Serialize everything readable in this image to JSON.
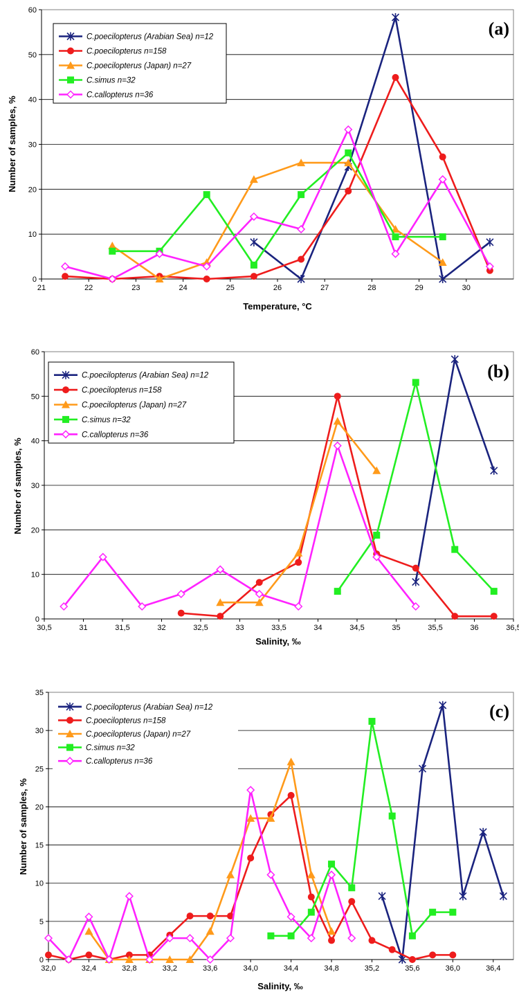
{
  "series_styles": [
    {
      "color": "#1a237e",
      "marker": "star"
    },
    {
      "color": "#ee1c1c",
      "marker": "circle"
    },
    {
      "color": "#ff9a1a",
      "marker": "triangle"
    },
    {
      "color": "#22ee22",
      "marker": "square"
    },
    {
      "color": "#ff22ff",
      "marker": "diamond"
    }
  ],
  "chart_data": [
    {
      "type": "line",
      "panel_label": "(a)",
      "xlabel": "Temperature, °C",
      "ylabel": "Number of samples, %",
      "xlim": [
        21,
        31
      ],
      "ylim": [
        0,
        60
      ],
      "xticks": [
        21,
        22,
        23,
        24,
        25,
        26,
        27,
        28,
        29,
        30
      ],
      "xtick_labels": [
        "21",
        "22",
        "23",
        "24",
        "25",
        "26",
        "27",
        "28",
        "29",
        "30"
      ],
      "yticks": [
        0,
        10,
        20,
        30,
        40,
        50,
        60
      ],
      "grid": "horizontal",
      "legend_position": "top-left",
      "series": [
        {
          "name": "C.poecilopterus (Arabian Sea) n=12",
          "points": [
            [
              25.5,
              8.2
            ],
            [
              26.5,
              0
            ],
            [
              27.5,
              25
            ],
            [
              28.5,
              58.3
            ],
            [
              29.5,
              0
            ],
            [
              30.5,
              8.2
            ]
          ]
        },
        {
          "name": "C.poecilopterus n=158",
          "points": [
            [
              21.5,
              0.6
            ],
            [
              22.5,
              0
            ],
            [
              23.5,
              0.6
            ],
            [
              24.5,
              0
            ],
            [
              25.5,
              0.6
            ],
            [
              26.5,
              4.4
            ],
            [
              27.5,
              19.6
            ],
            [
              28.5,
              44.9
            ],
            [
              29.5,
              27.2
            ],
            [
              30.5,
              1.9
            ]
          ]
        },
        {
          "name": "C.poecilopterus (Japan) n=27",
          "points": [
            [
              22.5,
              7.4
            ],
            [
              23.5,
              0
            ],
            [
              24.5,
              3.7
            ],
            [
              25.5,
              22.2
            ],
            [
              26.5,
              25.9
            ],
            [
              27.5,
              25.9
            ],
            [
              28.5,
              11.1
            ],
            [
              29.5,
              3.7
            ]
          ]
        },
        {
          "name": "C.simus n=32",
          "points": [
            [
              22.5,
              6.2
            ],
            [
              23.5,
              6.2
            ],
            [
              24.5,
              18.8
            ],
            [
              25.5,
              3.1
            ],
            [
              26.5,
              18.8
            ],
            [
              27.5,
              28.1
            ],
            [
              28.5,
              9.4
            ],
            [
              29.5,
              9.4
            ]
          ]
        },
        {
          "name": "C.callopterus n=36",
          "points": [
            [
              21.5,
              2.8
            ],
            [
              22.5,
              0
            ],
            [
              23.5,
              5.6
            ],
            [
              24.5,
              2.8
            ],
            [
              25.5,
              13.9
            ],
            [
              26.5,
              11.1
            ],
            [
              27.5,
              33.3
            ],
            [
              28.5,
              5.6
            ],
            [
              29.5,
              22.2
            ],
            [
              30.5,
              2.8
            ]
          ]
        }
      ]
    },
    {
      "type": "line",
      "panel_label": "(b)",
      "xlabel": "Salinity, ‰",
      "ylabel": "Number of samples, %",
      "xlim": [
        30.5,
        36.5
      ],
      "ylim": [
        0,
        60
      ],
      "xticks": [
        30.5,
        31,
        31.5,
        32,
        32.5,
        33,
        33.5,
        34,
        34.5,
        35,
        35.5,
        36,
        36.5
      ],
      "xtick_labels": [
        "30,5",
        "31",
        "31,5",
        "32",
        "32,5",
        "33",
        "33,5",
        "34",
        "34,5",
        "35",
        "35,5",
        "36",
        "36,5"
      ],
      "yticks": [
        0,
        10,
        20,
        30,
        40,
        50,
        60
      ],
      "grid": "horizontal",
      "legend_position": "top-left",
      "series": [
        {
          "name": "C.poecilopterus (Arabian Sea) n=12",
          "points": [
            [
              35.25,
              8.3
            ],
            [
              35.75,
              58.3
            ],
            [
              36.25,
              33.3
            ]
          ]
        },
        {
          "name": "C.poecilopterus n=158",
          "points": [
            [
              32.25,
              1.3
            ],
            [
              32.75,
              0.6
            ],
            [
              33.25,
              8.2
            ],
            [
              33.75,
              12.7
            ],
            [
              34.25,
              50
            ],
            [
              34.75,
              14.6
            ],
            [
              35.25,
              11.4
            ],
            [
              35.75,
              0.6
            ],
            [
              36.25,
              0.6
            ]
          ]
        },
        {
          "name": "C.poecilopterus (Japan) n=27",
          "points": [
            [
              32.75,
              3.7
            ],
            [
              33.25,
              3.7
            ],
            [
              33.75,
              14.8
            ],
            [
              34.25,
              44.4
            ],
            [
              34.75,
              33.3
            ]
          ]
        },
        {
          "name": "C.simus n=32",
          "points": [
            [
              34.25,
              6.2
            ],
            [
              34.75,
              18.8
            ],
            [
              35.25,
              53.1
            ],
            [
              35.75,
              15.6
            ],
            [
              36.25,
              6.2
            ]
          ]
        },
        {
          "name": "C.callopterus n=36",
          "points": [
            [
              30.75,
              2.8
            ],
            [
              31.25,
              13.9
            ],
            [
              31.75,
              2.8
            ],
            [
              32.25,
              5.6
            ],
            [
              32.75,
              11.1
            ],
            [
              33.25,
              5.6
            ],
            [
              33.75,
              2.8
            ],
            [
              34.25,
              38.9
            ],
            [
              34.75,
              13.9
            ],
            [
              35.25,
              2.8
            ]
          ]
        }
      ]
    },
    {
      "type": "line",
      "panel_label": "(c)",
      "xlabel": "Salinity, ‰",
      "ylabel": "Number of samples, %",
      "xlim": [
        32.0,
        36.6
      ],
      "ylim": [
        0,
        35
      ],
      "xticks": [
        32.0,
        32.4,
        32.8,
        33.2,
        33.6,
        34.0,
        34.4,
        34.8,
        35.2,
        35.6,
        36.0,
        36.4
      ],
      "xtick_labels": [
        "32,0",
        "32,4",
        "32,8",
        "33,2",
        "33,6",
        "34,0",
        "34,4",
        "34,8",
        "35,2",
        "35,6",
        "36,0",
        "36,4"
      ],
      "yticks": [
        0,
        5,
        10,
        15,
        20,
        25,
        30,
        35
      ],
      "grid": "horizontal",
      "legend_position": "top-left",
      "series": [
        {
          "name": "C.poecilopterus (Arabian Sea) n=12",
          "points": [
            [
              35.3,
              8.3
            ],
            [
              35.5,
              0
            ],
            [
              35.7,
              25
            ],
            [
              35.9,
              33.3
            ],
            [
              36.1,
              8.3
            ],
            [
              36.3,
              16.7
            ],
            [
              36.5,
              8.3
            ]
          ]
        },
        {
          "name": "C.poecilopterus n=158",
          "points": [
            [
              32.0,
              0.6
            ],
            [
              32.2,
              0
            ],
            [
              32.4,
              0.6
            ],
            [
              32.6,
              0
            ],
            [
              32.8,
              0.6
            ],
            [
              33.0,
              0.6
            ],
            [
              33.2,
              3.2
            ],
            [
              33.4,
              5.7
            ],
            [
              33.6,
              5.7
            ],
            [
              33.8,
              5.7
            ],
            [
              34.0,
              13.3
            ],
            [
              34.2,
              19
            ],
            [
              34.4,
              21.5
            ],
            [
              34.6,
              8.2
            ],
            [
              34.8,
              2.5
            ],
            [
              35.0,
              7.6
            ],
            [
              35.2,
              2.5
            ],
            [
              35.4,
              1.3
            ],
            [
              35.6,
              0
            ],
            [
              35.8,
              0.6
            ],
            [
              36.0,
              0.6
            ]
          ]
        },
        {
          "name": "C.poecilopterus (Japan) n=27",
          "points": [
            [
              32.4,
              3.7
            ],
            [
              32.6,
              0
            ],
            [
              32.8,
              0
            ],
            [
              33.0,
              0
            ],
            [
              33.2,
              0
            ],
            [
              33.4,
              0
            ],
            [
              33.6,
              3.7
            ],
            [
              33.8,
              11.1
            ],
            [
              34.0,
              18.5
            ],
            [
              34.2,
              18.5
            ],
            [
              34.4,
              25.9
            ],
            [
              34.6,
              11.1
            ],
            [
              34.8,
              3.7
            ]
          ]
        },
        {
          "name": "C.simus n=32",
          "points": [
            [
              34.2,
              3.1
            ],
            [
              34.4,
              3.1
            ],
            [
              34.6,
              6.2
            ],
            [
              34.8,
              12.5
            ],
            [
              35.0,
              9.4
            ],
            [
              35.2,
              31.2
            ],
            [
              35.4,
              18.8
            ],
            [
              35.6,
              3.1
            ],
            [
              35.8,
              6.2
            ],
            [
              36.0,
              6.2
            ]
          ]
        },
        {
          "name": "C.callopterus n=36",
          "points": [
            [
              32.0,
              2.8
            ],
            [
              32.2,
              0
            ],
            [
              32.4,
              5.6
            ],
            [
              32.6,
              0
            ],
            [
              32.8,
              8.3
            ],
            [
              33.0,
              0
            ],
            [
              33.2,
              2.8
            ],
            [
              33.4,
              2.8
            ],
            [
              33.6,
              0
            ],
            [
              33.8,
              2.8
            ],
            [
              34.0,
              22.2
            ],
            [
              34.2,
              11.1
            ],
            [
              34.4,
              5.6
            ],
            [
              34.6,
              2.8
            ],
            [
              34.8,
              11.1
            ],
            [
              35.0,
              2.8
            ]
          ]
        }
      ]
    }
  ]
}
